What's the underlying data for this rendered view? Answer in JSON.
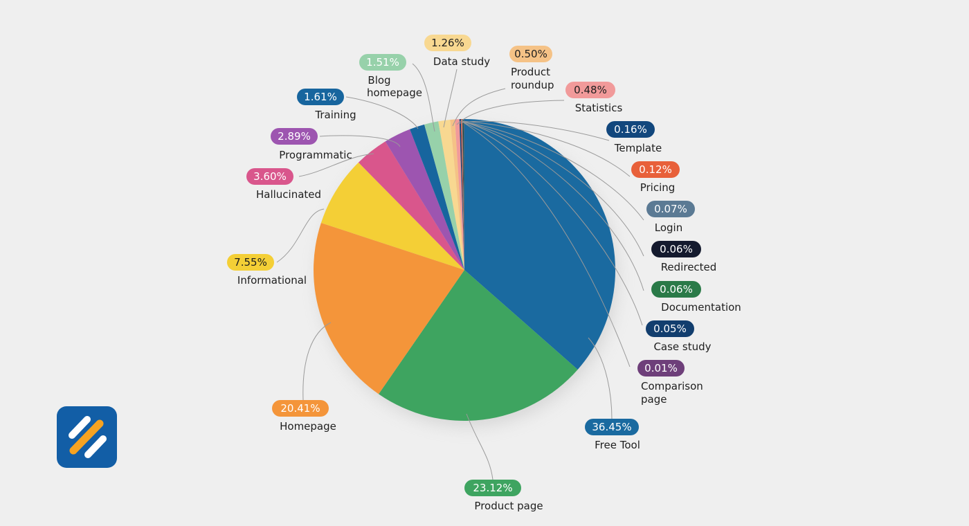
{
  "chart_data": {
    "type": "pie",
    "unit": "%",
    "slices": [
      {
        "label": "Free Tool",
        "value": 36.45,
        "display": "36.45%",
        "color": "#1a6aa0",
        "text_color": "#ffffff"
      },
      {
        "label": "Product page",
        "value": 23.12,
        "display": "23.12%",
        "color": "#3ea460",
        "text_color": "#ffffff"
      },
      {
        "label": "Homepage",
        "value": 20.41,
        "display": "20.41%",
        "color": "#f4953a",
        "text_color": "#ffffff"
      },
      {
        "label": "Informational",
        "value": 7.55,
        "display": "7.55%",
        "color": "#f4cf36",
        "text_color": "#1e1e1e"
      },
      {
        "label": "Hallucinated",
        "value": 3.6,
        "display": "3.60%",
        "color": "#d9568c",
        "text_color": "#ffffff"
      },
      {
        "label": "Programmatic",
        "value": 2.89,
        "display": "2.89%",
        "color": "#9d55b0",
        "text_color": "#ffffff"
      },
      {
        "label": "Training",
        "value": 1.61,
        "display": "1.61%",
        "color": "#17659e",
        "text_color": "#ffffff"
      },
      {
        "label": "Blog homepage",
        "value": 1.51,
        "display": "1.51%",
        "color": "#97d1aa",
        "text_color": "#ffffff"
      },
      {
        "label": "Data study",
        "value": 1.26,
        "display": "1.26%",
        "color": "#f8d891",
        "text_color": "#1e1e1e"
      },
      {
        "label": "Product roundup",
        "value": 0.5,
        "display": "0.50%",
        "color": "#f5c286",
        "text_color": "#1e1e1e"
      },
      {
        "label": "Statistics",
        "value": 0.48,
        "display": "0.48%",
        "color": "#f19a9a",
        "text_color": "#1e1e1e"
      },
      {
        "label": "Template",
        "value": 0.16,
        "display": "0.16%",
        "color": "#12477d",
        "text_color": "#ffffff"
      },
      {
        "label": "Pricing",
        "value": 0.12,
        "display": "0.12%",
        "color": "#e8603a",
        "text_color": "#ffffff"
      },
      {
        "label": "Login",
        "value": 0.07,
        "display": "0.07%",
        "color": "#5b7a94",
        "text_color": "#ffffff"
      },
      {
        "label": "Redirected",
        "value": 0.06,
        "display": "0.06%",
        "color": "#141a2e",
        "text_color": "#ffffff"
      },
      {
        "label": "Documentation",
        "value": 0.06,
        "display": "0.06%",
        "color": "#2a7a48",
        "text_color": "#ffffff"
      },
      {
        "label": "Case study",
        "value": 0.05,
        "display": "0.05%",
        "color": "#123e6e",
        "text_color": "#ffffff"
      },
      {
        "label": "Comparison page",
        "value": 0.01,
        "display": "0.01%",
        "color": "#6e3f7a",
        "text_color": "#ffffff"
      }
    ]
  },
  "logo": {
    "bg_color": "#125ea6",
    "stripe_white": "#ffffff",
    "stripe_orange": "#f6a321",
    "icon": "brand-logo-icon"
  }
}
